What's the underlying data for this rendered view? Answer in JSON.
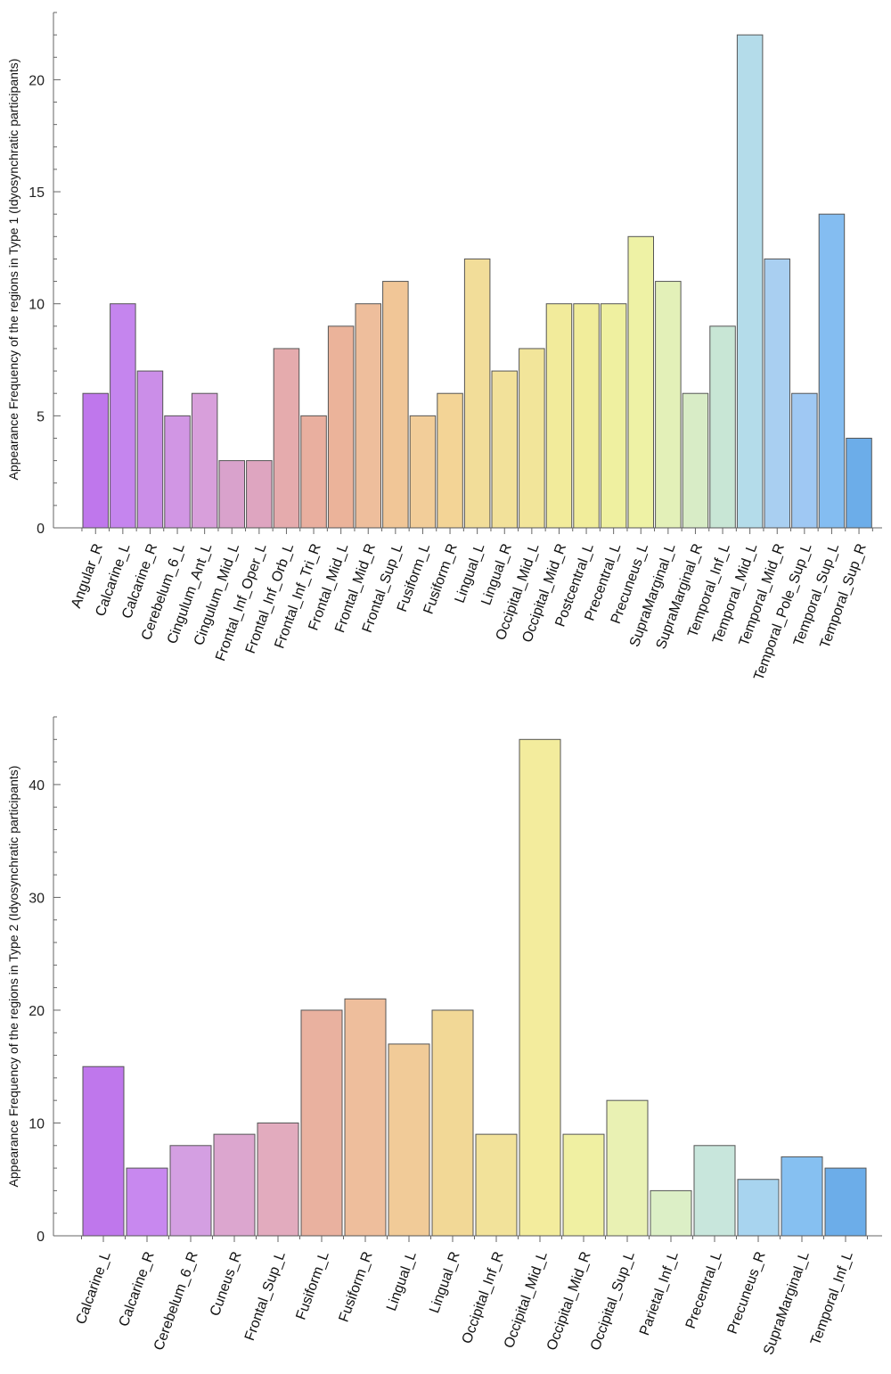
{
  "chart_data": [
    {
      "type": "bar",
      "title": "",
      "xlabel": "",
      "ylabel": "Appearance Frequency of the regions in Type 1 (Idyosynchratic participants)",
      "ylim": [
        0,
        23
      ],
      "yticks": [
        0,
        5,
        10,
        15,
        20
      ],
      "categories": [
        "Angular_R",
        "Calcarine_L",
        "Calcarine_R",
        "Cerebelum_6_L",
        "Cingulum_Ant_L",
        "Cingulum_Mid_L",
        "Frontal_Inf_Oper_L",
        "Frontal_Inf_Orb_L",
        "Frontal_Inf_Tri_R",
        "Frontal_Mid_L",
        "Frontal_Mid_R",
        "Frontal_Sup_L",
        "Fusiform_L",
        "Fusiform_R",
        "Lingual_L",
        "Lingual_R",
        "Occipital_Mid_L",
        "Occipital_Mid_R",
        "Postcentral_L",
        "Precentral_L",
        "Precuneus_L",
        "SupraMarginal_L",
        "SupraMarginal_R",
        "Temporal_Inf_L",
        "Temporal_Mid_L",
        "Temporal_Mid_R",
        "Temporal_Pole_Sup_L",
        "Temporal_Sup_L",
        "Temporal_Sup_R"
      ],
      "values": [
        6,
        10,
        7,
        5,
        6,
        3,
        3,
        8,
        5,
        9,
        10,
        11,
        5,
        6,
        12,
        7,
        8,
        10,
        10,
        10,
        13,
        11,
        6,
        9,
        22,
        12,
        6,
        14,
        4
      ],
      "colors": [
        "#bf77ec",
        "#c585ee",
        "#cb8ee8",
        "#d196e4",
        "#d89fdb",
        "#d9a2cc",
        "#dea5c0",
        "#e5abad",
        "#e9af9f",
        "#ebb39a",
        "#eebe9c",
        "#f1c697",
        "#f2cd99",
        "#f3d496",
        "#f2dd99",
        "#f2e19a",
        "#f2e59a",
        "#f2eb9b",
        "#f1ed9b",
        "#eff0a0",
        "#eef2a5",
        "#e3f0b8",
        "#d8ecc6",
        "#c8e6d5",
        "#b4dcea",
        "#a9cff1",
        "#9fc8f3",
        "#84bdf1",
        "#6cade9"
      ]
    },
    {
      "type": "bar",
      "title": "",
      "xlabel": "",
      "ylabel": "Appearance Frequency of the regions in Type 2 (Idyosynchratic participants)",
      "ylim": [
        0,
        46
      ],
      "yticks": [
        0,
        10,
        20,
        30,
        40
      ],
      "categories": [
        "Calcarine_L",
        "Calcarine_R",
        "Cerebelum_6_R",
        "Cuneus_R",
        "Frontal_Sup_L",
        "Fusiform_L",
        "Fusiform_R",
        "Lingual_L",
        "Lingual_R",
        "Occipital_Inf_R",
        "Occipital_Mid_L",
        "Occipital_Mid_R",
        "Occipital_Sup_L",
        "Parietal_Inf_L",
        "Precentral_L",
        "Precuneus_R",
        "SupraMarginal_L",
        "Temporal_Inf_L"
      ],
      "values": [
        15,
        6,
        8,
        9,
        10,
        20,
        21,
        17,
        20,
        9,
        44,
        9,
        12,
        4,
        8,
        5,
        7,
        6
      ],
      "colors": [
        "#bf77ec",
        "#c888ef",
        "#d49fe2",
        "#dca6cf",
        "#e2abbe",
        "#e9b19f",
        "#eebe9c",
        "#f1cb98",
        "#f2d896",
        "#f2e29a",
        "#f3ec9d",
        "#f0f0a2",
        "#e9f1b3",
        "#dcefc6",
        "#c8e6dc",
        "#a8d4ef",
        "#86c0f1",
        "#6cade9"
      ]
    }
  ]
}
